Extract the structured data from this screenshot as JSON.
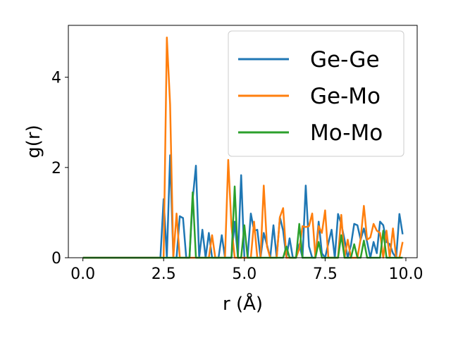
{
  "chart_data": {
    "type": "line",
    "xlabel": "r (Å)",
    "ylabel": "g(r)",
    "xlim": [
      -0.45,
      10.35
    ],
    "ylim": [
      0,
      5.15
    ],
    "xticks": [
      0.0,
      2.5,
      5.0,
      7.5,
      10.0
    ],
    "xtick_labels": [
      "0.0",
      "2.5",
      "5.0",
      "7.5",
      "10.0"
    ],
    "yticks": [
      0,
      2,
      4
    ],
    "ytick_labels": [
      "0",
      "2",
      "4"
    ],
    "grid": false,
    "legend_position": "top-right",
    "series": [
      {
        "name": "Ge-Ge",
        "color": "#1f77b4",
        "x": [
          0.0,
          2.4,
          2.5,
          2.6,
          2.7,
          2.8,
          2.9,
          3.0,
          3.1,
          3.2,
          3.3,
          3.4,
          3.5,
          3.6,
          3.7,
          3.8,
          3.9,
          4.0,
          4.1,
          4.2,
          4.3,
          4.4,
          4.5,
          4.6,
          4.7,
          4.8,
          4.9,
          5.0,
          5.1,
          5.2,
          5.3,
          5.4,
          5.5,
          5.6,
          5.7,
          5.8,
          5.9,
          6.0,
          6.1,
          6.2,
          6.3,
          6.4,
          6.5,
          6.6,
          6.7,
          6.8,
          6.9,
          7.0,
          7.1,
          7.2,
          7.3,
          7.4,
          7.5,
          7.6,
          7.7,
          7.8,
          7.9,
          8.0,
          8.1,
          8.2,
          8.3,
          8.4,
          8.5,
          8.6,
          8.7,
          8.8,
          8.9,
          9.0,
          9.1,
          9.2,
          9.3,
          9.4,
          9.5,
          9.6,
          9.7,
          9.8,
          9.9
        ],
        "y": [
          0.0,
          0.0,
          1.3,
          0.0,
          2.27,
          0.0,
          0.0,
          0.92,
          0.88,
          0.0,
          0.0,
          1.3,
          2.04,
          0.0,
          0.62,
          0.0,
          0.55,
          0.0,
          0.0,
          0.0,
          0.5,
          0.0,
          0.0,
          0.0,
          0.8,
          0.0,
          1.83,
          0.0,
          0.0,
          0.98,
          0.6,
          0.62,
          0.0,
          0.55,
          0.28,
          0.0,
          0.72,
          0.0,
          0.9,
          0.6,
          0.0,
          0.43,
          0.0,
          0.0,
          0.3,
          0.0,
          1.6,
          0.25,
          0.0,
          0.0,
          0.8,
          0.1,
          0.0,
          0.32,
          0.62,
          0.0,
          0.97,
          0.75,
          0.4,
          0.0,
          0.28,
          0.75,
          0.72,
          0.4,
          0.65,
          0.35,
          0.0,
          0.35,
          0.1,
          0.8,
          0.72,
          0.35,
          0.3,
          0.1,
          0.0,
          0.97,
          0.52
        ]
      },
      {
        "name": "Ge-Mo",
        "color": "#ff7f0e",
        "x": [
          0.0,
          2.4,
          2.5,
          2.6,
          2.7,
          2.8,
          2.9,
          3.0,
          3.1,
          3.2,
          3.3,
          3.4,
          3.5,
          3.6,
          3.7,
          3.8,
          3.9,
          4.0,
          4.1,
          4.2,
          4.3,
          4.4,
          4.5,
          4.6,
          4.7,
          4.8,
          4.9,
          5.0,
          5.1,
          5.2,
          5.3,
          5.4,
          5.5,
          5.6,
          5.7,
          5.8,
          5.9,
          6.0,
          6.1,
          6.2,
          6.3,
          6.4,
          6.5,
          6.6,
          6.7,
          6.8,
          6.9,
          7.0,
          7.1,
          7.2,
          7.3,
          7.4,
          7.5,
          7.6,
          7.7,
          7.8,
          7.9,
          8.0,
          8.1,
          8.2,
          8.3,
          8.4,
          8.5,
          8.6,
          8.7,
          8.8,
          8.9,
          9.0,
          9.1,
          9.2,
          9.3,
          9.4,
          9.5,
          9.6,
          9.7,
          9.8,
          9.9
        ],
        "y": [
          0.0,
          0.0,
          0.0,
          4.88,
          3.4,
          0.0,
          0.98,
          0.0,
          0.0,
          0.0,
          0.0,
          0.0,
          0.0,
          0.0,
          0.0,
          0.0,
          0.0,
          0.5,
          0.0,
          0.0,
          0.0,
          0.0,
          2.17,
          0.7,
          0.0,
          0.0,
          0.0,
          0.0,
          0.0,
          0.0,
          0.8,
          0.0,
          0.0,
          1.6,
          0.25,
          0.0,
          0.0,
          0.0,
          0.9,
          1.1,
          0.0,
          0.0,
          0.0,
          0.0,
          0.2,
          0.7,
          0.68,
          0.7,
          0.98,
          0.0,
          0.7,
          0.55,
          1.05,
          0.0,
          0.0,
          0.0,
          0.0,
          0.95,
          0.0,
          0.4,
          0.0,
          0.0,
          0.0,
          0.42,
          1.15,
          0.4,
          0.45,
          0.75,
          0.6,
          0.55,
          0.0,
          0.6,
          0.0,
          0.65,
          0.0,
          0.0,
          0.35
        ]
      },
      {
        "name": "Mo-Mo",
        "color": "#2ca02c",
        "x": [
          0.0,
          3.2,
          3.3,
          3.4,
          3.5,
          3.6,
          4.5,
          4.6,
          4.7,
          4.8,
          4.9,
          5.0,
          5.1,
          5.2,
          5.3,
          5.4,
          5.5,
          5.6,
          5.7,
          5.8,
          5.9,
          6.0,
          6.1,
          6.2,
          6.3,
          6.4,
          6.5,
          6.6,
          6.7,
          6.8,
          6.9,
          7.0,
          7.1,
          7.2,
          7.3,
          7.4,
          7.5,
          7.6,
          7.7,
          7.8,
          7.9,
          8.0,
          8.1,
          8.2,
          8.3,
          8.4,
          8.5,
          8.6,
          8.7,
          8.8,
          8.9,
          9.0,
          9.1,
          9.2,
          9.3,
          9.4,
          9.5,
          9.6,
          9.7,
          9.8,
          9.9
        ],
        "y": [
          0.0,
          0.0,
          0.0,
          1.45,
          0.0,
          0.0,
          0.0,
          0.0,
          1.58,
          0.0,
          0.0,
          0.72,
          0.0,
          0.0,
          0.0,
          0.0,
          0.0,
          0.0,
          0.0,
          0.0,
          0.0,
          0.0,
          0.0,
          0.0,
          0.25,
          0.0,
          0.0,
          0.0,
          0.75,
          0.0,
          0.0,
          0.0,
          0.0,
          0.0,
          0.35,
          0.0,
          0.0,
          0.0,
          0.0,
          0.0,
          0.0,
          0.5,
          0.0,
          0.0,
          0.0,
          0.3,
          0.0,
          0.0,
          0.38,
          0.0,
          0.0,
          0.0,
          0.0,
          0.0,
          0.6,
          0.0,
          0.0,
          0.0,
          0.0,
          0.0,
          0.0
        ]
      }
    ]
  }
}
